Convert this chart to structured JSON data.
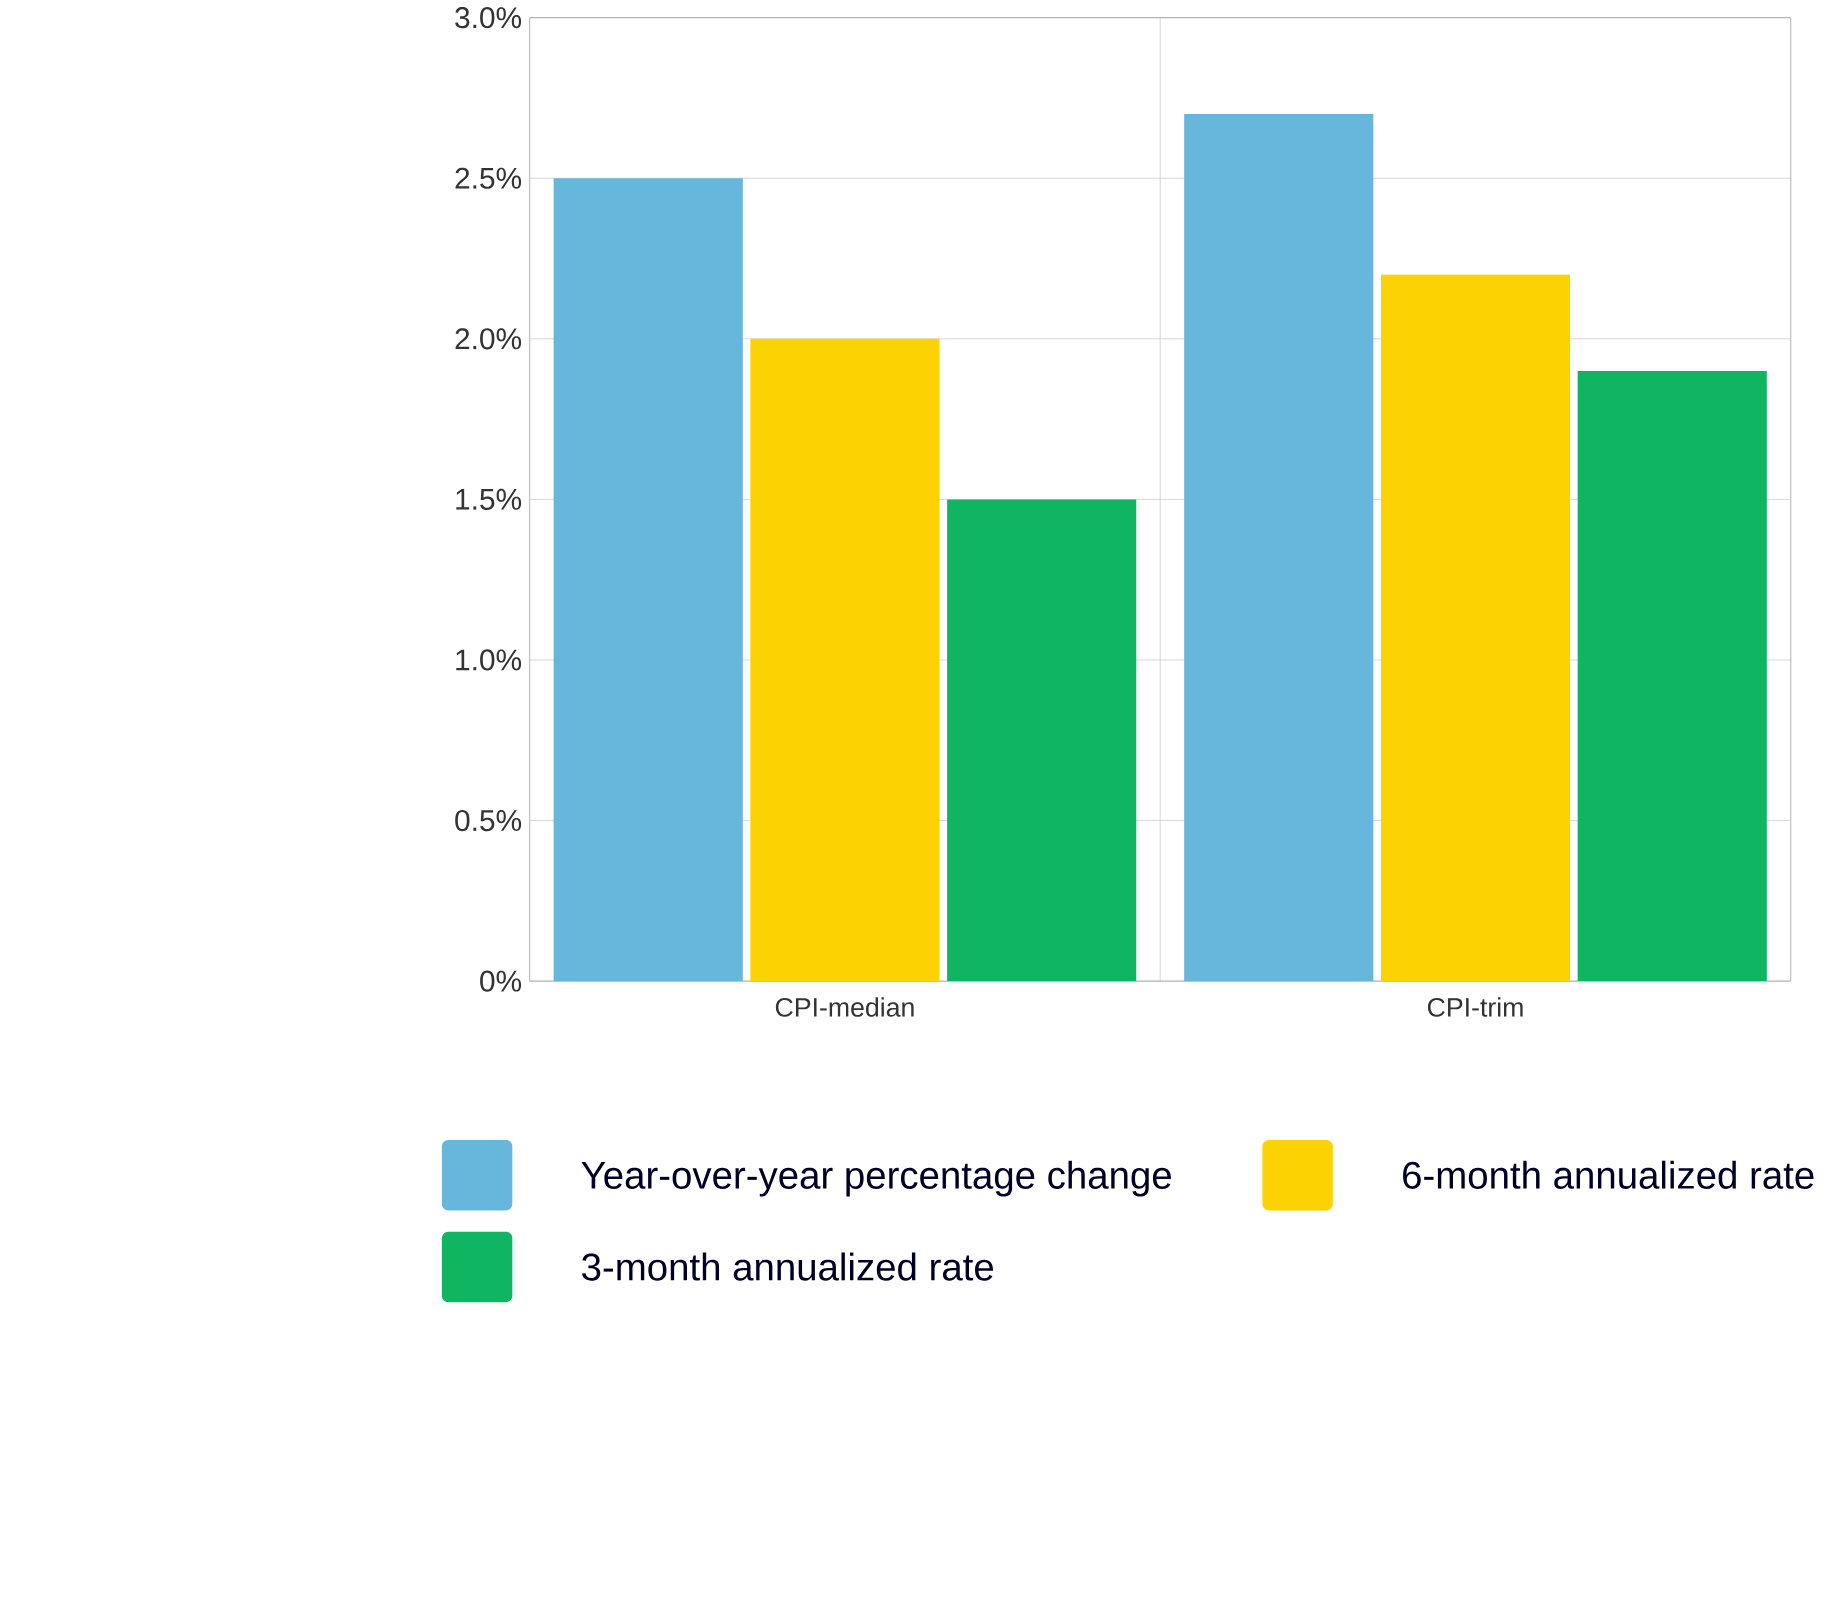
{
  "chart_data": {
    "type": "bar",
    "categories": [
      "CPI-median",
      "CPI-trim"
    ],
    "series": [
      {
        "name": "Year-over-year percentage change",
        "color": "#67b7dc",
        "values": [
          2.5,
          2.7
        ]
      },
      {
        "name": "6-month annualized rate",
        "color": "#fcd202",
        "values": [
          2.0,
          2.2
        ]
      },
      {
        "name": "3-month annualized rate",
        "color": "#10b562",
        "values": [
          1.5,
          1.9
        ]
      }
    ],
    "ylim": [
      0,
      3
    ],
    "yticks": [
      {
        "value": 0,
        "label": "0%"
      },
      {
        "value": 0.5,
        "label": "0.5%"
      },
      {
        "value": 1,
        "label": "1.0%"
      },
      {
        "value": 1.5,
        "label": "1.5%"
      },
      {
        "value": 2,
        "label": "2.0%"
      },
      {
        "value": 2.5,
        "label": "2.5%"
      },
      {
        "value": 3,
        "label": "3.0%"
      }
    ],
    "grid": true,
    "legend": "bottom"
  }
}
